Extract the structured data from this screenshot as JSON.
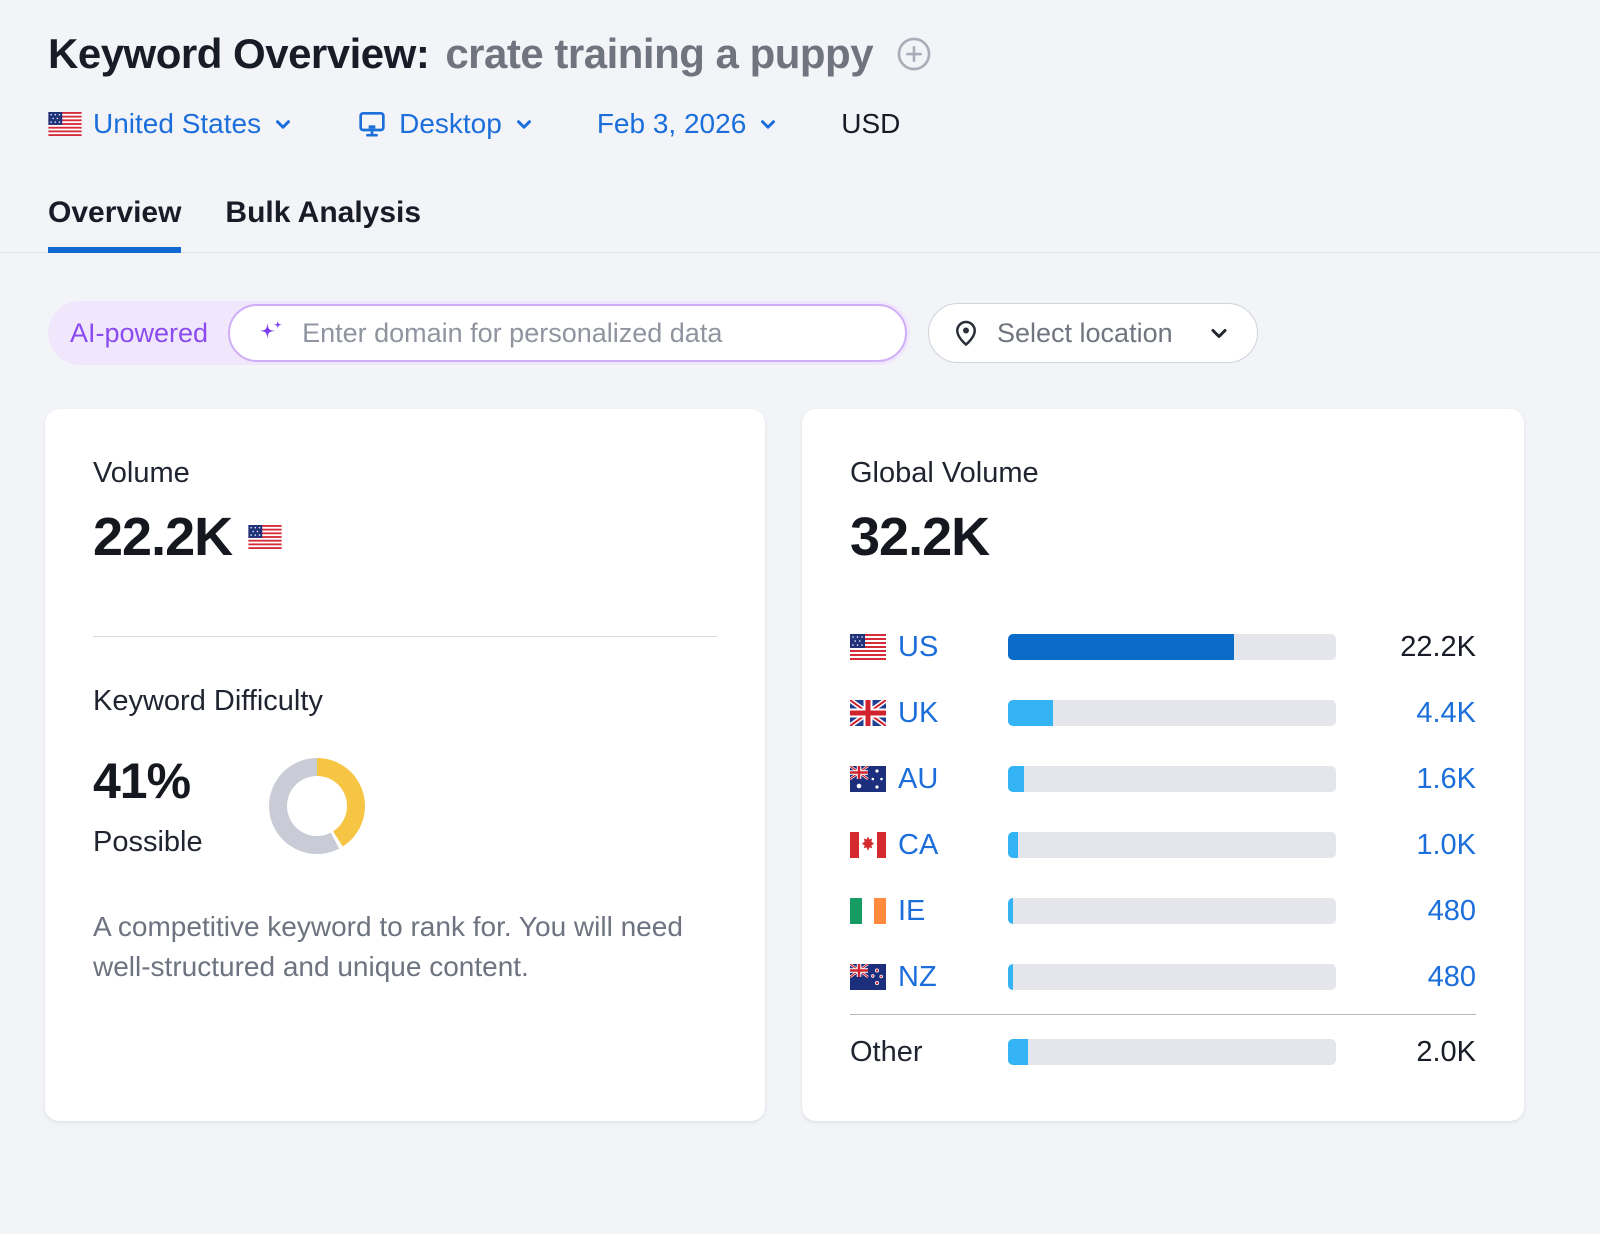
{
  "header": {
    "title": "Keyword Overview:",
    "keyword": "crate training a puppy",
    "filters": {
      "country_label": "United States",
      "device_label": "Desktop",
      "date_label": "Feb 3, 2026",
      "currency_label": "USD"
    }
  },
  "tabs": {
    "overview": "Overview",
    "bulk": "Bulk Analysis"
  },
  "search": {
    "ai_badge": "AI-powered",
    "domain_placeholder": "Enter domain for personalized data",
    "location_label": "Select location"
  },
  "volume_card": {
    "label": "Volume",
    "value": "22.2K",
    "kd": {
      "label": "Keyword Difficulty",
      "percent": "41%",
      "percent_value": 41,
      "level": "Possible",
      "description": "A competitive keyword to rank for. You will need well-structured and unique content."
    }
  },
  "global_card": {
    "label": "Global Volume",
    "value": "32.2K",
    "total_value": 32200,
    "rows": [
      {
        "code": "US",
        "flag": "us",
        "value": "22.2K",
        "volume": 22200,
        "pct": 68.9,
        "color": "#0b6bc9"
      },
      {
        "code": "UK",
        "flag": "uk",
        "value": "4.4K",
        "volume": 4400,
        "pct": 13.7,
        "color": "#34b4f5"
      },
      {
        "code": "AU",
        "flag": "au",
        "value": "1.6K",
        "volume": 1600,
        "pct": 5.0,
        "color": "#34b4f5"
      },
      {
        "code": "CA",
        "flag": "ca",
        "value": "1.0K",
        "volume": 1000,
        "pct": 3.1,
        "color": "#34b4f5"
      },
      {
        "code": "IE",
        "flag": "ie",
        "value": "480",
        "volume": 480,
        "pct": 1.5,
        "color": "#34b4f5"
      },
      {
        "code": "NZ",
        "flag": "nz",
        "value": "480",
        "volume": 480,
        "pct": 1.5,
        "color": "#34b4f5"
      },
      {
        "code": "Other",
        "flag": null,
        "value": "2.0K",
        "volume": 2000,
        "pct": 6.2,
        "color": "#34b4f5"
      }
    ]
  },
  "colors": {
    "link_blue": "#1c6fdb",
    "tab_underline": "#1268d1",
    "kd_yellow": "#f7c544",
    "kd_gray": "#c9ccd6",
    "bar_track": "#e4e6ec",
    "us_bar_blue": "#0b6bc9",
    "light_bar_blue": "#34b4f5",
    "ai_purple": "#8a4bf0"
  }
}
